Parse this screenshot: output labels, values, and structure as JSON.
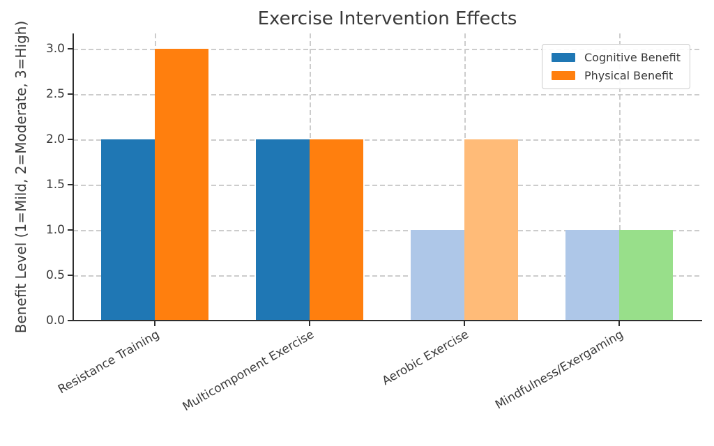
{
  "chart_data": {
    "type": "bar",
    "title": "Exercise Intervention Effects",
    "xlabel": "",
    "ylabel": "Benefit Level (1=Mild, 2=Moderate, 3=High)",
    "categories": [
      "Resistance Training",
      "Multicomponent Exercise",
      "Aerobic Exercise",
      "Mindfulness/Exergaming"
    ],
    "series": [
      {
        "name": "Cognitive Benefit",
        "values": [
          2,
          2,
          1,
          1
        ],
        "legend_color": "#1f77b4",
        "bar_colors": [
          "#1f77b4",
          "#1f77b4",
          "#aec7e8",
          "#aec7e8"
        ]
      },
      {
        "name": "Physical Benefit",
        "values": [
          3,
          2,
          2,
          1
        ],
        "legend_color": "#ff7f0e",
        "bar_colors": [
          "#ff7f0e",
          "#ff7f0e",
          "#ffbb78",
          "#98df8a"
        ]
      }
    ],
    "ytick_labels": [
      "0.0",
      "0.5",
      "1.0",
      "1.5",
      "2.0",
      "2.5",
      "3.0"
    ],
    "ylim": [
      0,
      3.17
    ],
    "x_tick_rotation_deg": 30,
    "grid": {
      "style": "dashed",
      "color": "#cccccc",
      "horizontal": true,
      "vertical": true
    },
    "legend_position": "upper-right",
    "axis_color": "#2e2e2e",
    "text_color": "#3a3a3a",
    "background_color": "#ffffff"
  }
}
